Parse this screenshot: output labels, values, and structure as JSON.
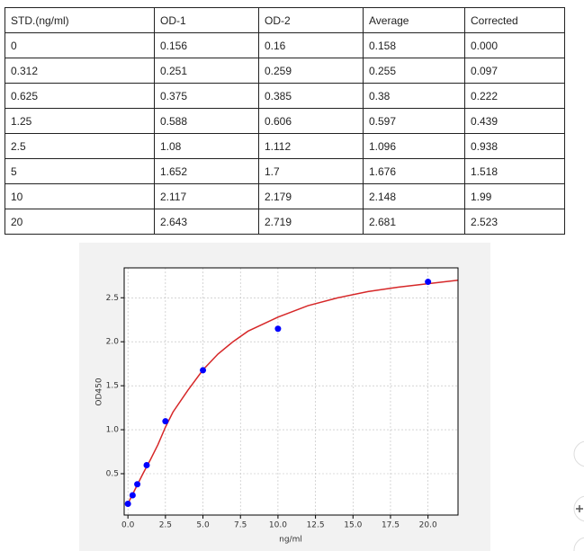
{
  "table": {
    "header": [
      "STD.(ng/ml)",
      "OD-1",
      "OD-2",
      "Average",
      "Corrected"
    ],
    "rows": [
      [
        "0",
        "0.156",
        "0.16",
        "0.158",
        "0.000"
      ],
      [
        "0.312",
        "0.251",
        "0.259",
        "0.255",
        "0.097"
      ],
      [
        "0.625",
        "0.375",
        "0.385",
        "0.38",
        "0.222"
      ],
      [
        "1.25",
        "0.588",
        "0.606",
        "0.597",
        "0.439"
      ],
      [
        "2.5",
        "1.08",
        "1.112",
        "1.096",
        "0.938"
      ],
      [
        "5",
        "1.652",
        "1.7",
        "1.676",
        "1.518"
      ],
      [
        "10",
        "2.117",
        "2.179",
        "2.148",
        "1.99"
      ],
      [
        "20",
        "2.643",
        "2.719",
        "2.681",
        "2.523"
      ]
    ]
  },
  "chart_data": {
    "type": "scatter",
    "xlabel": "ng/ml",
    "ylabel": "OD450",
    "grid": true,
    "xlim": [
      -0.25,
      22
    ],
    "ylim": [
      0.03,
      2.84
    ],
    "xticks": [
      {
        "value": 0,
        "label": "0.0"
      },
      2.5,
      {
        "value": 5,
        "label": "5.0"
      },
      7.5,
      {
        "value": 10,
        "label": "10.0"
      },
      12.5,
      {
        "value": 15,
        "label": "15.0"
      },
      17.5,
      {
        "value": 20,
        "label": "20.0"
      }
    ],
    "yticks": [
      {
        "value": 0.5,
        "label": "0.5"
      },
      {
        "value": 1,
        "label": "1.0"
      },
      {
        "value": 1.5,
        "label": "1.5"
      },
      {
        "value": 2,
        "label": "2.0"
      },
      {
        "value": 2.5,
        "label": "2.5"
      }
    ],
    "series": [
      {
        "type": "line",
        "color": "#d62728",
        "x": [
          0,
          0.5,
          1,
          1.5,
          2,
          2.5,
          3,
          4,
          5,
          6,
          7,
          8,
          10,
          12,
          14,
          16,
          18,
          20,
          22
        ],
        "values": [
          0.16,
          0.33,
          0.5,
          0.66,
          0.83,
          1.03,
          1.2,
          1.45,
          1.68,
          1.86,
          2.0,
          2.12,
          2.28,
          2.41,
          2.5,
          2.57,
          2.62,
          2.66,
          2.7
        ]
      },
      {
        "type": "scatter",
        "color": "#0000ff",
        "x": [
          0,
          0.312,
          0.625,
          1.25,
          2.5,
          5,
          10,
          20
        ],
        "values": [
          0.158,
          0.255,
          0.38,
          0.597,
          1.096,
          1.676,
          2.148,
          2.681
        ]
      }
    ]
  }
}
